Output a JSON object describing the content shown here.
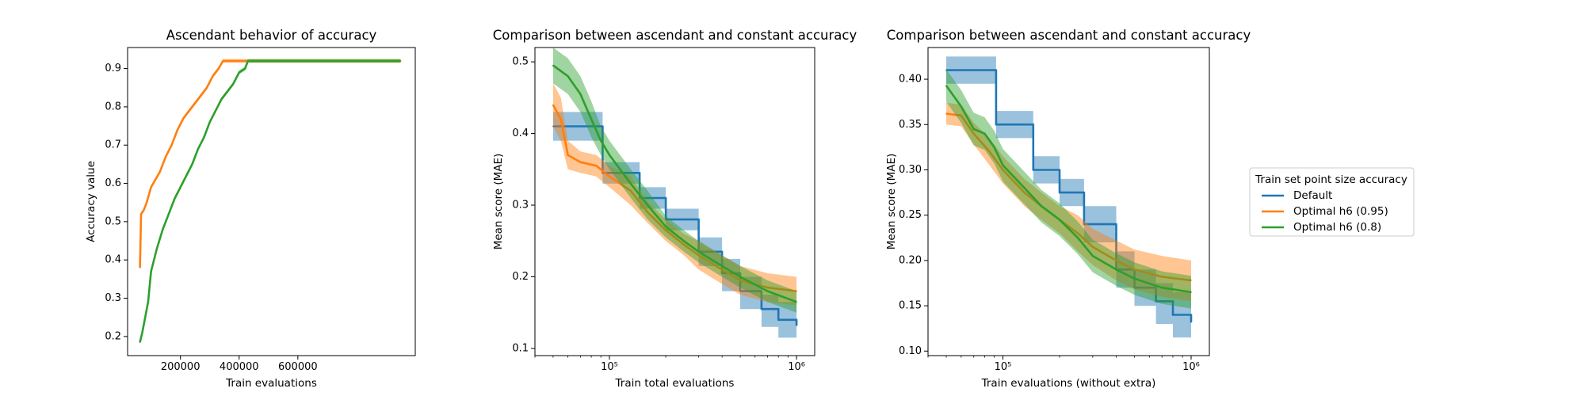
{
  "colors": {
    "default": "#1f77b4",
    "h95": "#ff7f0e",
    "h80": "#2ca02c"
  },
  "legend": {
    "title": "Train set point size accuracy",
    "position": "right",
    "entries": [
      {
        "label": "Default",
        "color": "#1f77b4"
      },
      {
        "label": "Optimal h6 (0.95)",
        "color": "#ff7f0e"
      },
      {
        "label": "Optimal h6 (0.8)",
        "color": "#2ca02c"
      }
    ]
  },
  "chart_data": [
    {
      "type": "line",
      "title": "Ascendant behavior of accuracy",
      "xlabel": "Train evaluations",
      "ylabel": "Accuracy value",
      "xscale": "linear",
      "xlim": [
        20000,
        1000000
      ],
      "ylim": [
        0.15,
        0.955
      ],
      "xticks": [
        200000,
        400000,
        600000
      ],
      "xtick_labels": [
        "200000",
        "400000",
        "600000"
      ],
      "yticks": [
        0.2,
        0.3,
        0.4,
        0.5,
        0.6,
        0.7,
        0.8,
        0.9
      ],
      "ytick_labels": [
        "0.2",
        "0.3",
        "0.4",
        "0.5",
        "0.6",
        "0.7",
        "0.8",
        "0.9"
      ],
      "grid": false,
      "series": [
        {
          "key": "h95",
          "step": false,
          "x": [
            62000,
            66000,
            75000,
            85000,
            100000,
            115000,
            130000,
            150000,
            170000,
            190000,
            210000,
            230000,
            250000,
            270000,
            290000,
            310000,
            330000,
            345000,
            360000,
            950000
          ],
          "y": [
            0.38,
            0.52,
            0.53,
            0.55,
            0.59,
            0.61,
            0.63,
            0.67,
            0.7,
            0.74,
            0.77,
            0.79,
            0.81,
            0.83,
            0.85,
            0.88,
            0.9,
            0.92,
            0.92,
            0.92
          ],
          "band": 0.005
        },
        {
          "key": "h80",
          "step": false,
          "x": [
            62000,
            70000,
            80000,
            90000,
            100000,
            120000,
            140000,
            160000,
            180000,
            200000,
            220000,
            240000,
            260000,
            280000,
            300000,
            320000,
            340000,
            360000,
            380000,
            400000,
            420000,
            430000,
            950000
          ],
          "y": [
            0.185,
            0.21,
            0.25,
            0.29,
            0.37,
            0.43,
            0.48,
            0.52,
            0.56,
            0.59,
            0.62,
            0.65,
            0.69,
            0.72,
            0.76,
            0.79,
            0.82,
            0.84,
            0.86,
            0.89,
            0.9,
            0.92,
            0.92
          ],
          "band": 0.005
        }
      ]
    },
    {
      "type": "line",
      "title": "Comparison between ascendant and constant accuracy",
      "xlabel": "Train total evaluations",
      "ylabel": "Mean score (MAE)",
      "xscale": "log",
      "xlim": [
        40000,
        1250000
      ],
      "ylim": [
        0.09,
        0.52
      ],
      "xticks": [
        100000,
        1000000
      ],
      "xtick_labels": [
        "10⁵",
        "10⁶"
      ],
      "yticks": [
        0.1,
        0.2,
        0.3,
        0.4,
        0.5
      ],
      "ytick_labels": [
        "0.1",
        "0.2",
        "0.3",
        "0.4",
        "0.5"
      ],
      "grid": false,
      "series": [
        {
          "key": "default",
          "step": true,
          "x": [
            50000,
            92000,
            145000,
            200000,
            300000,
            400000,
            500000,
            650000,
            800000,
            1000000
          ],
          "y": [
            0.41,
            0.345,
            0.31,
            0.28,
            0.235,
            0.205,
            0.18,
            0.155,
            0.14,
            0.132
          ],
          "lo": [
            0.39,
            0.33,
            0.295,
            0.265,
            0.215,
            0.18,
            0.155,
            0.13,
            0.115,
            0.105
          ],
          "hi": [
            0.43,
            0.36,
            0.325,
            0.295,
            0.255,
            0.225,
            0.2,
            0.175,
            0.165,
            0.155
          ]
        },
        {
          "key": "h95",
          "step": false,
          "x": [
            50000,
            55000,
            60000,
            70000,
            85000,
            100000,
            130000,
            160000,
            200000,
            250000,
            300000,
            400000,
            500000,
            700000,
            1000000
          ],
          "y": [
            0.44,
            0.42,
            0.37,
            0.36,
            0.355,
            0.34,
            0.32,
            0.29,
            0.265,
            0.245,
            0.23,
            0.21,
            0.195,
            0.185,
            0.18
          ],
          "lo": [
            0.41,
            0.39,
            0.35,
            0.345,
            0.34,
            0.325,
            0.3,
            0.275,
            0.25,
            0.23,
            0.21,
            0.19,
            0.175,
            0.165,
            0.16
          ],
          "hi": [
            0.47,
            0.45,
            0.39,
            0.375,
            0.37,
            0.355,
            0.34,
            0.305,
            0.28,
            0.26,
            0.25,
            0.23,
            0.215,
            0.205,
            0.2
          ]
        },
        {
          "key": "h80",
          "step": false,
          "x": [
            50000,
            60000,
            70000,
            80000,
            90000,
            100000,
            130000,
            160000,
            200000,
            250000,
            300000,
            400000,
            500000,
            700000,
            1000000
          ],
          "y": [
            0.495,
            0.48,
            0.455,
            0.42,
            0.39,
            0.37,
            0.33,
            0.3,
            0.27,
            0.25,
            0.235,
            0.215,
            0.2,
            0.18,
            0.165
          ],
          "lo": [
            0.47,
            0.455,
            0.43,
            0.395,
            0.37,
            0.35,
            0.31,
            0.28,
            0.255,
            0.235,
            0.22,
            0.2,
            0.185,
            0.165,
            0.15
          ],
          "hi": [
            0.52,
            0.505,
            0.48,
            0.445,
            0.41,
            0.39,
            0.35,
            0.32,
            0.285,
            0.265,
            0.25,
            0.23,
            0.215,
            0.195,
            0.18
          ]
        }
      ]
    },
    {
      "type": "line",
      "title": "Comparison between ascendant and constant accuracy",
      "xlabel": "Train evaluations (without extra)",
      "ylabel": "Mean score (MAE)",
      "xscale": "log",
      "xlim": [
        40000,
        1250000
      ],
      "ylim": [
        0.095,
        0.435
      ],
      "xticks": [
        100000,
        1000000
      ],
      "xtick_labels": [
        "10⁵",
        "10⁶"
      ],
      "yticks": [
        0.1,
        0.15,
        0.2,
        0.25,
        0.3,
        0.35,
        0.4
      ],
      "ytick_labels": [
        "0.10",
        "0.15",
        "0.20",
        "0.25",
        "0.30",
        "0.35",
        "0.40"
      ],
      "grid": false,
      "series": [
        {
          "key": "default",
          "step": true,
          "x": [
            50000,
            92000,
            145000,
            200000,
            270000,
            400000,
            500000,
            650000,
            800000,
            1000000
          ],
          "y": [
            0.41,
            0.35,
            0.3,
            0.275,
            0.24,
            0.19,
            0.17,
            0.155,
            0.14,
            0.132
          ],
          "lo": [
            0.395,
            0.335,
            0.285,
            0.26,
            0.22,
            0.17,
            0.15,
            0.13,
            0.115,
            0.11
          ],
          "hi": [
            0.425,
            0.365,
            0.315,
            0.29,
            0.26,
            0.21,
            0.19,
            0.175,
            0.165,
            0.155
          ]
        },
        {
          "key": "h95",
          "step": false,
          "x": [
            50000,
            60000,
            70000,
            85000,
            100000,
            130000,
            160000,
            200000,
            250000,
            300000,
            400000,
            500000,
            700000,
            1000000
          ],
          "y": [
            0.362,
            0.36,
            0.34,
            0.32,
            0.3,
            0.275,
            0.26,
            0.245,
            0.23,
            0.215,
            0.2,
            0.19,
            0.182,
            0.178
          ],
          "lo": [
            0.35,
            0.348,
            0.328,
            0.305,
            0.285,
            0.26,
            0.245,
            0.23,
            0.21,
            0.195,
            0.178,
            0.168,
            0.16,
            0.155
          ],
          "hi": [
            0.374,
            0.372,
            0.352,
            0.335,
            0.315,
            0.29,
            0.275,
            0.26,
            0.25,
            0.235,
            0.222,
            0.212,
            0.205,
            0.2
          ]
        },
        {
          "key": "h80",
          "step": false,
          "x": [
            50000,
            60000,
            70000,
            80000,
            90000,
            100000,
            130000,
            160000,
            200000,
            250000,
            300000,
            400000,
            500000,
            700000,
            1000000
          ],
          "y": [
            0.393,
            0.37,
            0.345,
            0.34,
            0.325,
            0.305,
            0.28,
            0.26,
            0.245,
            0.225,
            0.205,
            0.19,
            0.18,
            0.17,
            0.165
          ],
          "lo": [
            0.375,
            0.352,
            0.327,
            0.322,
            0.307,
            0.287,
            0.262,
            0.242,
            0.227,
            0.207,
            0.187,
            0.172,
            0.162,
            0.152,
            0.147
          ],
          "hi": [
            0.411,
            0.388,
            0.363,
            0.358,
            0.343,
            0.323,
            0.298,
            0.278,
            0.263,
            0.243,
            0.223,
            0.208,
            0.198,
            0.188,
            0.183
          ]
        }
      ]
    }
  ]
}
